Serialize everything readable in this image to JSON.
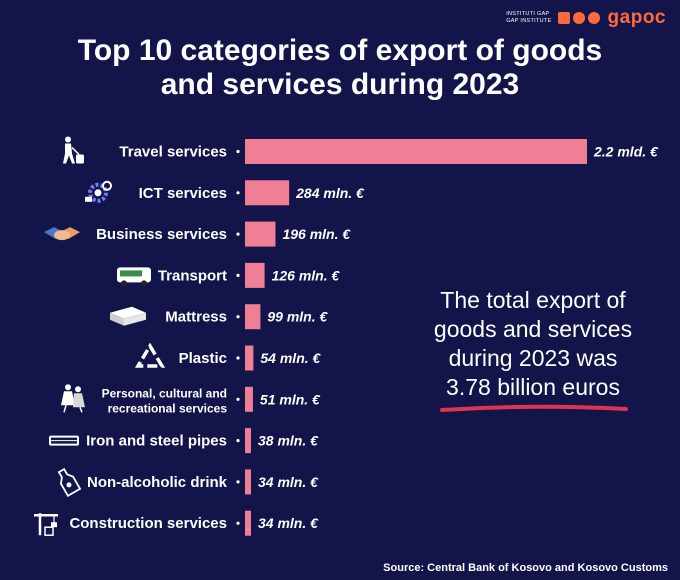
{
  "logo": {
    "subtitle_line1": "INSTITUTI GAP",
    "subtitle_line2": "GAP INSTITUTE",
    "wordmark": "gapoc",
    "accent_color": "#ff6a3d"
  },
  "title": {
    "line1": "Top 10 categories of export of goods",
    "line2": "and services during 2023"
  },
  "callout": {
    "line1": "The total export of",
    "line2": "goods and services",
    "line3": "during 2023 was",
    "highlight": "3.78 billion euros",
    "underline_color": "#e0334f"
  },
  "source": "Source: Central Bank of Kosovo and Kosovo Customs",
  "colors": {
    "background": "#13154a",
    "bar": "#f07f96"
  },
  "chart_data": {
    "type": "bar",
    "orientation": "horizontal",
    "title": "Top 10 categories of export of goods and services during 2023",
    "unit": "million €",
    "categories": [
      "Travel services",
      "ICT services",
      "Business services",
      "Transport",
      "Mattress",
      "Plastic",
      "Personal, cultural and recreational services",
      "Iron and steel pipes",
      "Non-alcoholic drink",
      "Construction services"
    ],
    "category_lines": [
      [
        "Travel services"
      ],
      [
        "ICT services"
      ],
      [
        "Business services"
      ],
      [
        "Transport"
      ],
      [
        "Mattress"
      ],
      [
        "Plastic"
      ],
      [
        "Personal, cultural and",
        "recreational services"
      ],
      [
        "Iron and steel pipes"
      ],
      [
        "Non-alcoholic drink"
      ],
      [
        "Construction services"
      ]
    ],
    "icons": [
      "traveler-luggage-icon",
      "ict-gears-icon",
      "handshake-icon",
      "bus-icon",
      "mattress-icon",
      "recycle-icon",
      "dancers-icon",
      "steel-pipe-icon",
      "bottle-icon",
      "crane-icon"
    ],
    "values": [
      2200,
      284,
      196,
      126,
      99,
      54,
      51,
      38,
      34,
      34
    ],
    "value_labels": [
      "2.2 mld. €",
      "284 mln. €",
      "196 mln. €",
      "126 mln. €",
      "99 mln. €",
      "54 mln. €",
      "51 mln. €",
      "38 mln. €",
      "34 mln. €",
      "34 mln. €"
    ],
    "xlabel": "",
    "ylabel": "",
    "grid": false,
    "legend": "none"
  }
}
